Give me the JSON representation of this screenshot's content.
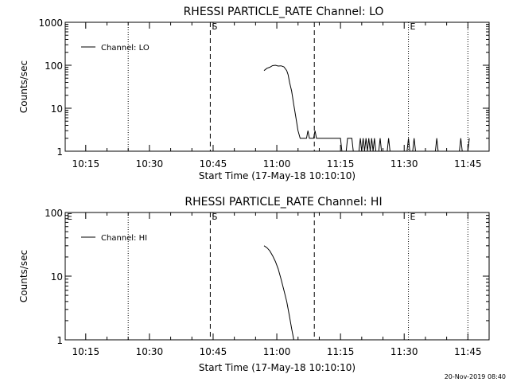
{
  "footer_stamp": "20-Nov-2019 08:40",
  "chart_data": [
    {
      "type": "line",
      "title": "RHESSI PARTICLE_RATE Channel: LO",
      "xlabel": "Start Time (17-May-18 10:10:10)",
      "ylabel": "Counts/sec",
      "yscale": "log",
      "ylim": [
        1,
        1000
      ],
      "xlim": [
        "10:10:10",
        "11:50:00"
      ],
      "x_ticks": [
        "10:15",
        "10:30",
        "10:45",
        "11:00",
        "11:15",
        "11:30",
        "11:45"
      ],
      "y_ticks": [
        "1",
        "10",
        "100",
        "1000"
      ],
      "legend": "top-left",
      "vlines": [
        {
          "x": "10:25:00",
          "style": "dotted",
          "label": ""
        },
        {
          "x": "10:44:20",
          "style": "dashed",
          "label": "S"
        },
        {
          "x": "11:08:50",
          "style": "dashed",
          "label": ""
        },
        {
          "x": "11:31:00",
          "style": "dotted",
          "label": "E"
        },
        {
          "x": "11:45:00",
          "style": "dotted",
          "label": ""
        }
      ],
      "series": [
        {
          "name": "Channel: LO",
          "color": "#000000",
          "points": [
            [
              "10:57:00",
              75
            ],
            [
              "10:57:40",
              85
            ],
            [
              "10:58:20",
              90
            ],
            [
              "10:59:00",
              98
            ],
            [
              "10:59:40",
              100
            ],
            [
              "11:00:20",
              96
            ],
            [
              "11:01:00",
              97
            ],
            [
              "11:01:40",
              92
            ],
            [
              "11:02:20",
              75
            ],
            [
              "11:02:40",
              60
            ],
            [
              "11:03:00",
              40
            ],
            [
              "11:03:30",
              25
            ],
            [
              "11:04:00",
              12
            ],
            [
              "11:04:30",
              6
            ],
            [
              "11:05:00",
              3
            ],
            [
              "11:05:30",
              2
            ],
            [
              "11:07:00",
              2
            ],
            [
              "11:07:20",
              3
            ],
            [
              "11:07:40",
              2
            ],
            [
              "11:08:40",
              2
            ],
            [
              "11:09:00",
              3
            ],
            [
              "11:09:20",
              2
            ],
            [
              "11:15:00",
              2
            ],
            [
              "11:15:20",
              1
            ],
            [
              "11:16:20",
              1
            ],
            [
              "11:16:40",
              2
            ],
            [
              "11:17:40",
              2
            ],
            [
              "11:18:00",
              1
            ],
            [
              "11:19:20",
              1
            ],
            [
              "11:19:40",
              2
            ],
            [
              "11:20:00",
              1
            ],
            [
              "11:20:20",
              2
            ],
            [
              "11:20:40",
              1
            ],
            [
              "11:21:00",
              2
            ],
            [
              "11:21:20",
              1
            ],
            [
              "11:21:40",
              2
            ],
            [
              "11:22:00",
              1
            ],
            [
              "11:22:20",
              2
            ],
            [
              "11:22:40",
              1
            ],
            [
              "11:23:00",
              2
            ],
            [
              "11:23:20",
              1
            ],
            [
              "11:24:00",
              1
            ],
            [
              "11:24:20",
              2
            ],
            [
              "11:24:40",
              1
            ],
            [
              "11:26:00",
              1
            ],
            [
              "11:26:20",
              2
            ],
            [
              "11:26:40",
              1
            ],
            [
              "11:30:40",
              1
            ],
            [
              "11:31:00",
              2
            ],
            [
              "11:31:20",
              1
            ],
            [
              "11:32:00",
              1
            ],
            [
              "11:32:20",
              2
            ],
            [
              "11:32:40",
              1
            ],
            [
              "11:37:20",
              1
            ],
            [
              "11:37:40",
              2
            ],
            [
              "11:38:00",
              1
            ],
            [
              "11:43:00",
              1
            ],
            [
              "11:43:20",
              2
            ],
            [
              "11:43:40",
              1
            ],
            [
              "11:45:00",
              1
            ],
            [
              "11:45:20",
              2
            ]
          ]
        }
      ]
    },
    {
      "type": "line",
      "title": "RHESSI PARTICLE_RATE Channel: HI",
      "xlabel": "Start Time (17-May-18 10:10:10)",
      "ylabel": "Counts/sec",
      "yscale": "log",
      "ylim": [
        1,
        100
      ],
      "xlim": [
        "10:10:10",
        "11:50:00"
      ],
      "x_ticks": [
        "10:15",
        "10:30",
        "10:45",
        "11:00",
        "11:15",
        "11:30",
        "11:45"
      ],
      "y_ticks": [
        "1",
        "10",
        "100"
      ],
      "legend": "top-left",
      "vlines": [
        {
          "x": "10:10:10",
          "style": "none",
          "label": "E"
        },
        {
          "x": "10:25:00",
          "style": "dotted",
          "label": ""
        },
        {
          "x": "10:44:20",
          "style": "dashed",
          "label": "S"
        },
        {
          "x": "11:08:50",
          "style": "dashed",
          "label": ""
        },
        {
          "x": "11:31:00",
          "style": "dotted",
          "label": "E"
        },
        {
          "x": "11:45:00",
          "style": "dotted",
          "label": ""
        }
      ],
      "series": [
        {
          "name": "Channel: HI",
          "color": "#000000",
          "points": [
            [
              "10:57:00",
              30
            ],
            [
              "10:57:40",
              28
            ],
            [
              "10:58:20",
              25
            ],
            [
              "10:59:00",
              21
            ],
            [
              "10:59:40",
              17
            ],
            [
              "11:00:20",
              13
            ],
            [
              "11:01:00",
              9
            ],
            [
              "11:01:40",
              6
            ],
            [
              "11:02:20",
              4
            ],
            [
              "11:03:00",
              2.3
            ],
            [
              "11:03:30",
              1.5
            ],
            [
              "11:04:00",
              1
            ]
          ]
        }
      ]
    }
  ]
}
